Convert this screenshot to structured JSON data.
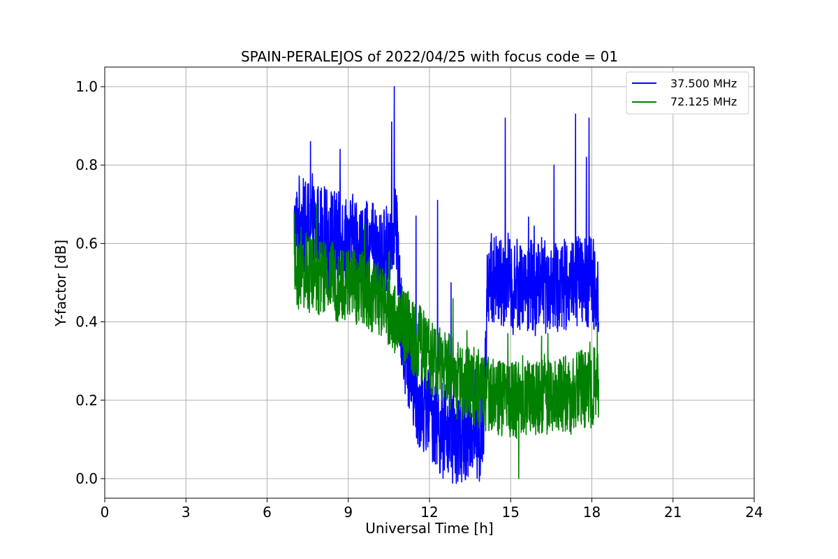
{
  "chart_data": {
    "type": "line",
    "title": "SPAIN-PERALEJOS of 2022/04/25 with focus code = 01",
    "xlabel": "Universal Time [h]",
    "ylabel": "Y-factor [dB]",
    "xlim": [
      0,
      24
    ],
    "ylim": [
      -0.05,
      1.05
    ],
    "xticks": [
      0,
      3,
      6,
      9,
      12,
      15,
      18,
      21,
      24
    ],
    "yticks": [
      0.0,
      0.2,
      0.4,
      0.6,
      0.8,
      1.0
    ],
    "xtick_labels": [
      "0",
      "3",
      "6",
      "9",
      "12",
      "15",
      "18",
      "21",
      "24"
    ],
    "ytick_labels": [
      "0.0",
      "0.2",
      "0.4",
      "0.6",
      "0.8",
      "1.0"
    ],
    "grid": true,
    "legend_position": "top-right",
    "series": [
      {
        "name": "37.500 MHz",
        "color": "#0000ff",
        "x": [
          7.0,
          7.2,
          7.4,
          7.6,
          7.8,
          8.0,
          8.2,
          8.4,
          8.6,
          8.8,
          9.0,
          9.2,
          9.4,
          9.6,
          9.8,
          10.0,
          10.2,
          10.4,
          10.6,
          10.75,
          10.9,
          11.0,
          11.2,
          11.4,
          11.6,
          11.8,
          12.0,
          12.2,
          12.4,
          12.6,
          12.8,
          13.0,
          13.2,
          13.4,
          13.6,
          13.8,
          14.0,
          14.15,
          14.3,
          14.5,
          14.7,
          14.9,
          15.1,
          15.3,
          15.5,
          15.7,
          15.9,
          16.1,
          16.3,
          16.5,
          16.7,
          16.9,
          17.1,
          17.3,
          17.5,
          17.7,
          17.9,
          18.1,
          18.25
        ],
        "y": [
          0.62,
          0.66,
          0.64,
          0.65,
          0.63,
          0.64,
          0.62,
          0.63,
          0.61,
          0.62,
          0.6,
          0.61,
          0.59,
          0.58,
          0.6,
          0.57,
          0.56,
          0.58,
          0.62,
          0.7,
          0.45,
          0.35,
          0.3,
          0.24,
          0.2,
          0.18,
          0.17,
          0.15,
          0.13,
          0.12,
          0.11,
          0.1,
          0.11,
          0.12,
          0.13,
          0.1,
          0.12,
          0.5,
          0.52,
          0.5,
          0.49,
          0.51,
          0.48,
          0.5,
          0.49,
          0.5,
          0.48,
          0.51,
          0.49,
          0.5,
          0.48,
          0.5,
          0.49,
          0.5,
          0.51,
          0.49,
          0.5,
          0.5,
          0.48
        ],
        "noise_amplitude": 0.12,
        "spikes": [
          [
            7.6,
            0.86
          ],
          [
            8.7,
            0.84
          ],
          [
            10.7,
            1.0
          ],
          [
            10.6,
            0.91
          ],
          [
            12.3,
            0.71
          ],
          [
            14.8,
            0.92
          ],
          [
            17.4,
            0.93
          ],
          [
            17.9,
            0.92
          ],
          [
            16.6,
            0.8
          ],
          [
            17.8,
            0.82
          ],
          [
            11.5,
            0.67
          ],
          [
            12.8,
            0.5
          ],
          [
            13.0,
            0.0
          ]
        ]
      },
      {
        "name": "72.125 MHz",
        "color": "#008000",
        "x": [
          7.0,
          7.2,
          7.4,
          7.6,
          7.8,
          8.0,
          8.2,
          8.4,
          8.6,
          8.8,
          9.0,
          9.2,
          9.4,
          9.6,
          9.8,
          10.0,
          10.2,
          10.4,
          10.6,
          10.8,
          11.0,
          11.2,
          11.4,
          11.6,
          11.8,
          12.0,
          12.2,
          12.4,
          12.6,
          12.8,
          13.0,
          13.2,
          13.4,
          13.6,
          13.8,
          14.0,
          14.2,
          14.4,
          14.6,
          14.8,
          15.0,
          15.2,
          15.4,
          15.6,
          15.8,
          16.0,
          16.2,
          16.4,
          16.6,
          16.8,
          17.0,
          17.2,
          17.4,
          17.6,
          17.8,
          18.0,
          18.25
        ],
        "y": [
          0.53,
          0.52,
          0.53,
          0.52,
          0.51,
          0.52,
          0.5,
          0.51,
          0.5,
          0.49,
          0.5,
          0.49,
          0.48,
          0.49,
          0.47,
          0.46,
          0.45,
          0.44,
          0.42,
          0.4,
          0.39,
          0.38,
          0.36,
          0.35,
          0.33,
          0.32,
          0.3,
          0.29,
          0.28,
          0.27,
          0.26,
          0.25,
          0.24,
          0.24,
          0.23,
          0.22,
          0.22,
          0.21,
          0.21,
          0.2,
          0.2,
          0.2,
          0.21,
          0.2,
          0.21,
          0.2,
          0.22,
          0.21,
          0.22,
          0.21,
          0.22,
          0.21,
          0.22,
          0.23,
          0.22,
          0.23,
          0.25
        ],
        "noise_amplitude": 0.1,
        "spikes": [
          [
            7.0,
            0.68
          ],
          [
            9.6,
            0.65
          ],
          [
            15.3,
            0.0
          ],
          [
            14.9,
            0.37
          ],
          [
            18.2,
            0.4
          ]
        ]
      }
    ]
  }
}
